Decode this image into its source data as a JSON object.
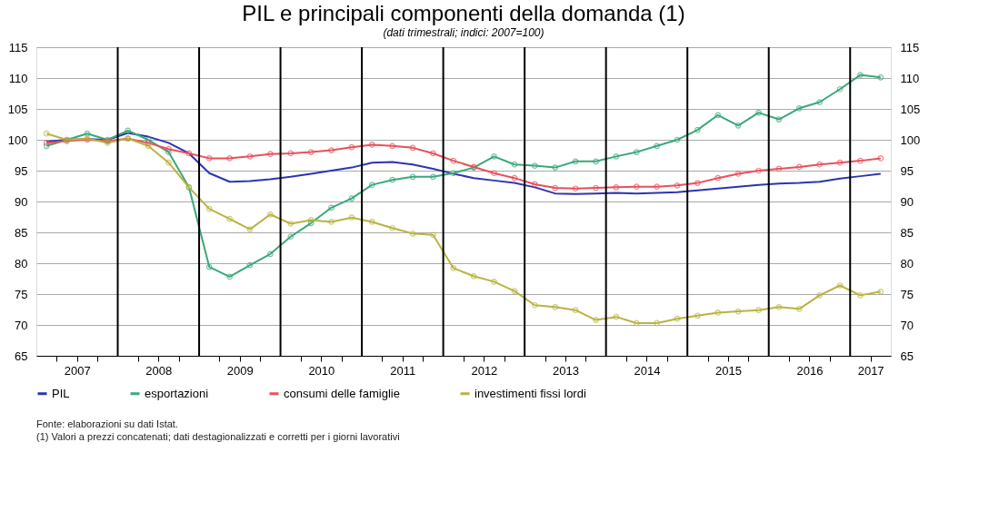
{
  "chart_data": {
    "type": "line",
    "title": "PIL e principali componenti della domanda (1)",
    "subtitle": "(dati trimestrali; indici: 2007=100)",
    "x": [
      2007.125,
      2007.375,
      2007.625,
      2007.875,
      2008.125,
      2008.375,
      2008.625,
      2008.875,
      2009.125,
      2009.375,
      2009.625,
      2009.875,
      2010.125,
      2010.375,
      2010.625,
      2010.875,
      2011.125,
      2011.375,
      2011.625,
      2011.875,
      2012.125,
      2012.375,
      2012.625,
      2012.875,
      2013.125,
      2013.375,
      2013.625,
      2013.875,
      2014.125,
      2014.375,
      2014.625,
      2014.875,
      2015.125,
      2015.375,
      2015.625,
      2015.875,
      2016.125,
      2016.375,
      2016.625,
      2016.875,
      2017.125,
      2017.375
    ],
    "series": [
      {
        "name": "PIL",
        "color": "#2b35b0",
        "marker": "none",
        "values": [
          99.7,
          100,
          100.1,
          100,
          101.1,
          100.5,
          99.5,
          97.8,
          94.6,
          93.2,
          93.3,
          93.6,
          94,
          94.5,
          95,
          95.5,
          96.3,
          96.4,
          96,
          95.3,
          94.5,
          93.8,
          93.4,
          93,
          92.3,
          91.3,
          91.2,
          91.3,
          91.4,
          91.3,
          91.4,
          91.5,
          91.8,
          92.1,
          92.4,
          92.7,
          92.9,
          93,
          93.2,
          93.7,
          94.1,
          94.5
        ]
      },
      {
        "name": "esportazioni",
        "color": "#3aa87a",
        "marker": "circle",
        "values": [
          99,
          100,
          101,
          100,
          101.5,
          100,
          98,
          92.3,
          79.4,
          77.8,
          79.7,
          81.5,
          84.3,
          86.5,
          89,
          90.5,
          92.7,
          93.5,
          94,
          94,
          94.6,
          95.5,
          97.3,
          96,
          95.8,
          95.5,
          96.5,
          96.5,
          97.3,
          98,
          99,
          100,
          101.6,
          104,
          102.3,
          104.4,
          103.3,
          105.1,
          106.1,
          108.2,
          110.5,
          110.1
        ]
      },
      {
        "name": "consumi delle famiglie",
        "color": "#e8505b",
        "marker": "circle",
        "values": [
          99.5,
          99.8,
          100,
          99.8,
          100.2,
          99.5,
          98.5,
          97.8,
          97,
          97,
          97.3,
          97.7,
          97.8,
          98,
          98.3,
          98.8,
          99.2,
          99,
          98.7,
          97.8,
          96.6,
          95.6,
          94.6,
          93.8,
          92.8,
          92.2,
          92.1,
          92.2,
          92.3,
          92.4,
          92.4,
          92.6,
          93,
          93.8,
          94.5,
          95,
          95.3,
          95.6,
          96,
          96.3,
          96.6,
          97
        ]
      },
      {
        "name": "investimenti fissi lordi",
        "color": "#b8b440",
        "marker": "circle",
        "values": [
          101,
          100,
          100.2,
          99.5,
          100.2,
          99,
          96.3,
          92.3,
          88.8,
          87.2,
          85.5,
          87.9,
          86.4,
          87,
          86.7,
          87.4,
          86.7,
          85.7,
          84.8,
          84.6,
          79.2,
          77.9,
          77,
          75.5,
          73.2,
          72.9,
          72.4,
          70.8,
          71.3,
          70.3,
          70.3,
          71,
          71.5,
          72,
          72.2,
          72.4,
          72.9,
          72.6,
          74.8,
          76.4,
          74.8,
          75.4
        ]
      }
    ],
    "xlim": [
      2007,
      2017.5
    ],
    "xticks": [
      {
        "value": 2007.25,
        "label": null
      },
      {
        "value": 2007.5,
        "label": "2007"
      },
      {
        "value": 2007.75,
        "label": null
      },
      {
        "value": 2008.25,
        "label": null
      },
      {
        "value": 2008.5,
        "label": "2008"
      },
      {
        "value": 2008.75,
        "label": null
      },
      {
        "value": 2009.25,
        "label": null
      },
      {
        "value": 2009.5,
        "label": "2009"
      },
      {
        "value": 2009.75,
        "label": null
      },
      {
        "value": 2010.25,
        "label": null
      },
      {
        "value": 2010.5,
        "label": "2010"
      },
      {
        "value": 2010.75,
        "label": null
      },
      {
        "value": 2011.25,
        "label": null
      },
      {
        "value": 2011.5,
        "label": "2011"
      },
      {
        "value": 2011.75,
        "label": null
      },
      {
        "value": 2012.25,
        "label": null
      },
      {
        "value": 2012.5,
        "label": "2012"
      },
      {
        "value": 2012.75,
        "label": null
      },
      {
        "value": 2013.25,
        "label": null
      },
      {
        "value": 2013.5,
        "label": "2013"
      },
      {
        "value": 2013.75,
        "label": null
      },
      {
        "value": 2014.25,
        "label": null
      },
      {
        "value": 2014.5,
        "label": "2014"
      },
      {
        "value": 2014.75,
        "label": null
      },
      {
        "value": 2015.25,
        "label": null
      },
      {
        "value": 2015.5,
        "label": "2015"
      },
      {
        "value": 2015.75,
        "label": null
      },
      {
        "value": 2016.25,
        "label": null
      },
      {
        "value": 2016.5,
        "label": "2016"
      },
      {
        "value": 2016.75,
        "label": null
      },
      {
        "value": 2017.25,
        "label": "2017"
      }
    ],
    "ylim": [
      65,
      115
    ],
    "yticks": [
      65,
      70,
      75,
      80,
      85,
      90,
      95,
      100,
      105,
      110,
      115
    ],
    "y2lim": [
      65,
      115
    ],
    "y2ticks": [
      65,
      70,
      75,
      80,
      85,
      90,
      95,
      100,
      105,
      110,
      115
    ],
    "ref_lines": [
      {
        "axis": "x",
        "value": 2008,
        "color": "#000000"
      },
      {
        "axis": "x",
        "value": 2009,
        "color": "#000000"
      },
      {
        "axis": "x",
        "value": 2010,
        "color": "#000000"
      },
      {
        "axis": "x",
        "value": 2011,
        "color": "#000000"
      },
      {
        "axis": "x",
        "value": 2012,
        "color": "#000000"
      },
      {
        "axis": "x",
        "value": 2013,
        "color": "#000000"
      },
      {
        "axis": "x",
        "value": 2014,
        "color": "#000000"
      },
      {
        "axis": "x",
        "value": 2015,
        "color": "#000000"
      },
      {
        "axis": "x",
        "value": 2016,
        "color": "#000000"
      },
      {
        "axis": "x",
        "value": 2017,
        "color": "#000000"
      }
    ],
    "grid": "y",
    "legend": "bottom",
    "line_style": "solid",
    "annotations": [
      "Fonte: elaborazioni su dati Istat.",
      "(1) Valori a prezzi concatenati; dati destagionalizzati e corretti per i giorni lavorativi"
    ]
  }
}
